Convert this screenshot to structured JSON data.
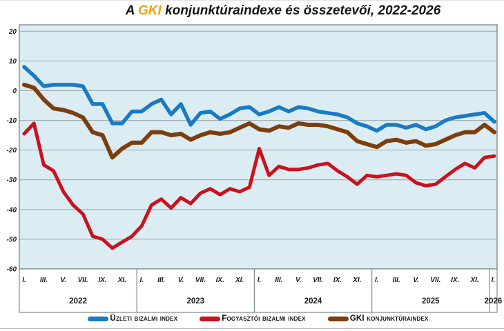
{
  "title": {
    "prefix": "A ",
    "highlight": "GKI",
    "rest": " konjunktúraindexe és összetevői, 2022-2026",
    "highlight_color": "#F3A200"
  },
  "chart_data": {
    "type": "line",
    "title": "A GKI konjunktúraindexe és összetevői, 2022-2026",
    "x_unit": "month",
    "x_range": "2022-01 to 2026-01",
    "n_points": 49,
    "years": [
      {
        "label": "2022",
        "month_ticks": [
          "I.",
          "III.",
          "V.",
          "VII.",
          "IX.",
          "XI."
        ]
      },
      {
        "label": "2023",
        "month_ticks": [
          "I.",
          "III.",
          "V.",
          "VII.",
          "IX.",
          "XI."
        ]
      },
      {
        "label": "2024",
        "month_ticks": [
          "I.",
          "III.",
          "V.",
          "VII.",
          "IX.",
          "XI."
        ]
      },
      {
        "label": "2025",
        "month_ticks": [
          "I.",
          "III.",
          "V.",
          "VII.",
          "IX.",
          "XI."
        ]
      },
      {
        "label": "2026",
        "month_ticks": [
          "I."
        ]
      }
    ],
    "yticks": [
      20,
      10,
      0,
      -10,
      -20,
      -30,
      -40,
      -50,
      -60
    ],
    "ylim": [
      -60,
      22
    ],
    "grid": true,
    "legend_position": "bottom",
    "plot_bg": "#DBEDF3",
    "grid_color": "#99A4A7",
    "border_color": "#7D8A8D",
    "series": [
      {
        "name": "Üzleti bizalmi index",
        "slug": "uzleti-bizalmi-index",
        "color": "#1A7AC4",
        "width": 5.5,
        "values": [
          8,
          5,
          1.5,
          2,
          2,
          2,
          1.5,
          -4.5,
          -4.5,
          -11,
          -11,
          -7,
          -7,
          -4.5,
          -3,
          -8,
          -4.5,
          -11.5,
          -7.5,
          -7,
          -9.5,
          -8,
          -6,
          -5.5,
          -8,
          -7,
          -5.5,
          -7,
          -5.5,
          -6,
          -7,
          -7.5,
          -8,
          -9,
          -11,
          -12,
          -13.5,
          -11.5,
          -11.5,
          -12.5,
          -11.5,
          -13,
          -12,
          -10,
          -9,
          -8.5,
          -8,
          -7.5,
          -10.5
        ]
      },
      {
        "name": "Fogyasztói bizalmi index",
        "slug": "fogyasztoi-bizalmi-index",
        "color": "#C9121F",
        "width": 5,
        "values": [
          -14.5,
          -11,
          -25,
          -27,
          -34,
          -38.5,
          -41.5,
          -49,
          -50,
          -53,
          -51,
          -49,
          -45.5,
          -38.5,
          -36.5,
          -39.5,
          -36,
          -38,
          -34.5,
          -33,
          -35,
          -33,
          -34,
          -32.5,
          -19.5,
          -28.5,
          -25.5,
          -26.5,
          -26.5,
          -26,
          -25,
          -24.5,
          -27,
          -29,
          -31.5,
          -28.5,
          -29,
          -28.5,
          -28,
          -28.5,
          -31,
          -32,
          -31.5,
          -29,
          -26.5,
          -24.5,
          -26,
          -22.5,
          -22
        ]
      },
      {
        "name": "GKI konjunktúraindex",
        "slug": "gki-konjunkturaindex",
        "color": "#7C3E0D",
        "width": 6,
        "values": [
          2,
          1,
          -3,
          -6,
          -6.5,
          -7.5,
          -9,
          -14,
          -15,
          -22.5,
          -19.5,
          -17.5,
          -17.5,
          -14,
          -14,
          -15,
          -14.5,
          -16.5,
          -15,
          -14,
          -14.5,
          -14,
          -12.5,
          -11,
          -13,
          -13.5,
          -12,
          -12.5,
          -11,
          -11.5,
          -11.5,
          -12,
          -13,
          -14,
          -17,
          -18,
          -19,
          -17,
          -16.5,
          -17.5,
          -17,
          -18.5,
          -18,
          -16.5,
          -15,
          -14,
          -14,
          -11.5,
          -14
        ]
      }
    ]
  }
}
